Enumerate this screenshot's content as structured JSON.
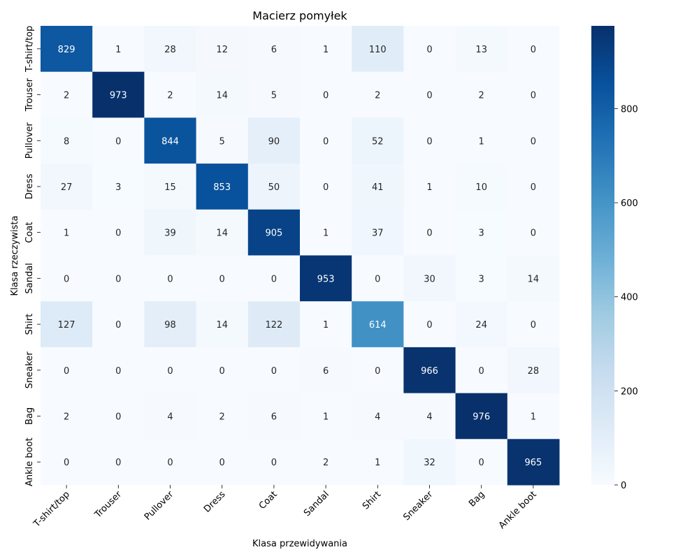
{
  "chart_data": {
    "type": "heatmap",
    "title": "Macierz pomyłek",
    "xlabel": "Klasa przewidywania",
    "ylabel": "Klasa rzeczywista",
    "x_categories": [
      "T-shirt/top",
      "Trouser",
      "Pullover",
      "Dress",
      "Coat",
      "Sandal",
      "Shirt",
      "Sneaker",
      "Bag",
      "Ankle boot"
    ],
    "y_categories": [
      "T-shirt/top",
      "Trouser",
      "Pullover",
      "Dress",
      "Coat",
      "Sandal",
      "Shirt",
      "Sneaker",
      "Bag",
      "Ankle boot"
    ],
    "values": [
      [
        829,
        1,
        28,
        12,
        6,
        1,
        110,
        0,
        13,
        0
      ],
      [
        2,
        973,
        2,
        14,
        5,
        0,
        2,
        0,
        2,
        0
      ],
      [
        8,
        0,
        844,
        5,
        90,
        0,
        52,
        0,
        1,
        0
      ],
      [
        27,
        3,
        15,
        853,
        50,
        0,
        41,
        1,
        10,
        0
      ],
      [
        1,
        0,
        39,
        14,
        905,
        1,
        37,
        0,
        3,
        0
      ],
      [
        0,
        0,
        0,
        0,
        0,
        953,
        0,
        30,
        3,
        14
      ],
      [
        127,
        0,
        98,
        14,
        122,
        1,
        614,
        0,
        24,
        0
      ],
      [
        0,
        0,
        0,
        0,
        0,
        6,
        0,
        966,
        0,
        28
      ],
      [
        2,
        0,
        4,
        2,
        6,
        1,
        4,
        4,
        976,
        1
      ],
      [
        0,
        0,
        0,
        0,
        0,
        2,
        1,
        32,
        0,
        965
      ]
    ],
    "colormap": "Blues",
    "colorbar": {
      "min": 0,
      "max": 976,
      "ticks": [
        0,
        200,
        400,
        600,
        800
      ]
    },
    "annotations": true,
    "grid": false
  }
}
